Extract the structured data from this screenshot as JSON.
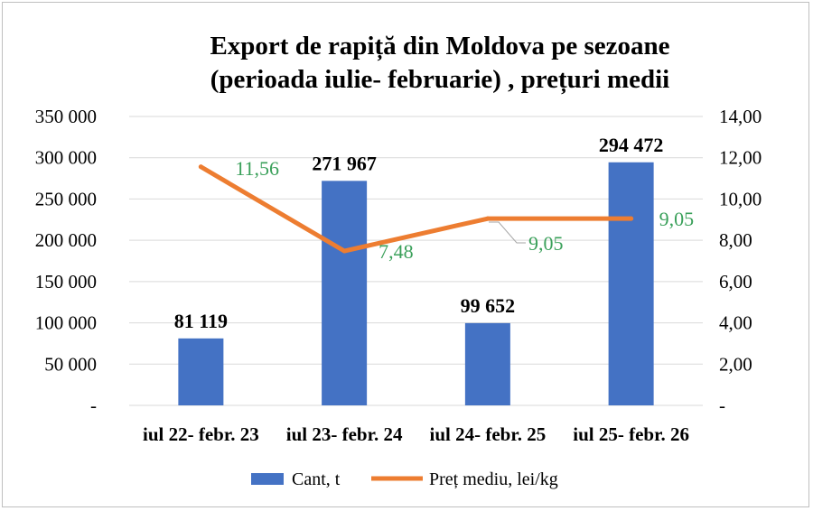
{
  "chart_data": {
    "type": "bar",
    "title_lines": [
      "Export de rapiță din  Moldova pe sezoane",
      "(perioada iulie- februarie) , prețuri medii"
    ],
    "categories": [
      "iul 22- febr. 23",
      "iul 23- febr. 24",
      "iul 24- febr. 25",
      "iul 25- febr. 26"
    ],
    "series": [
      {
        "name": "Cant, t",
        "kind": "bar",
        "axis": "left",
        "color": "#4472c4",
        "values": [
          81119,
          271967,
          99652,
          294472
        ],
        "labels": [
          "81 119",
          "271 967",
          "99 652",
          "294 472"
        ]
      },
      {
        "name": "Preț mediu, lei/kg",
        "kind": "line",
        "axis": "right",
        "color": "#ed7d31",
        "values": [
          11.56,
          7.48,
          9.05,
          9.05
        ],
        "labels": [
          "11,56",
          "7,48",
          "9,05",
          "9,05"
        ]
      }
    ],
    "y_left": {
      "min": 0,
      "max": 350000,
      "ticks": [
        0,
        50000,
        100000,
        150000,
        200000,
        250000,
        300000,
        350000
      ],
      "tick_labels": [
        "-",
        "50 000",
        "100 000",
        "150 000",
        "200 000",
        "250 000",
        "300 000",
        "350 000"
      ]
    },
    "y_right": {
      "min": 0,
      "max": 14,
      "ticks": [
        0,
        2,
        4,
        6,
        8,
        10,
        12,
        14
      ],
      "tick_labels": [
        "-",
        "2,00",
        "4,00",
        "6,00",
        "8,00",
        "10,00",
        "12,00",
        "14,00"
      ]
    },
    "line_label_color": "#3aa05a",
    "grid": true,
    "legend_position": "bottom"
  }
}
